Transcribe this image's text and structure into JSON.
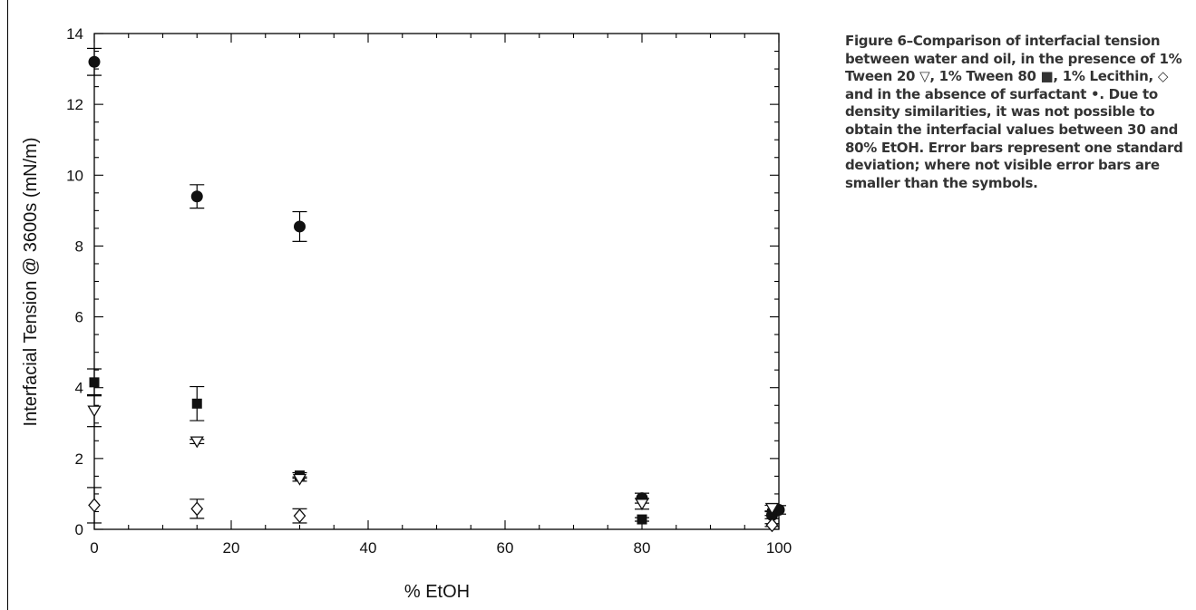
{
  "caption": "Figure 6–Comparison of interfacial tension between water and oil, in the presence of 1% Tween 20 ▽, 1% Tween 80 ■, 1% Lecithin, ◇ and in the absence of surfactant •. Due to density similarities, it was not possible to obtain the interfacial values between 30 and 80% EtOH. Error bars represent one standard deviation; where not visible error bars are smaller than the symbols.",
  "chart_data": {
    "type": "scatter",
    "title": "",
    "xlabel": "% EtOH",
    "ylabel": "Interfacial Tension @ 3600s (mN/m)",
    "xlim": [
      0,
      100
    ],
    "ylim": [
      0,
      14
    ],
    "xticks": [
      0,
      20,
      40,
      60,
      80,
      100
    ],
    "yticks": [
      0,
      2,
      4,
      6,
      8,
      10,
      12,
      14
    ],
    "grid": false,
    "series": [
      {
        "marker": "circle-filled",
        "points": [
          {
            "x": 0,
            "y": 13.2,
            "err": 0.38
          },
          {
            "x": 15,
            "y": 9.4,
            "err": 0.33
          },
          {
            "x": 30,
            "y": 8.55,
            "err": 0.42
          },
          {
            "x": 80,
            "y": 0.88,
            "err": 0.14
          },
          {
            "x": 99,
            "y": 0.4,
            "err": 0.1
          },
          {
            "x": 100,
            "y": 0.55,
            "err": 0.12
          }
        ]
      },
      {
        "marker": "square-filled",
        "points": [
          {
            "x": 0,
            "y": 4.15,
            "err": 0.38
          },
          {
            "x": 15,
            "y": 3.55,
            "err": 0.48
          },
          {
            "x": 30,
            "y": 1.52,
            "err": 0.08
          },
          {
            "x": 80,
            "y": 0.28,
            "err": 0.05
          },
          {
            "x": 99,
            "y": 0.45,
            "err": 0.06
          }
        ]
      },
      {
        "marker": "triangle-down-open",
        "points": [
          {
            "x": 0,
            "y": 3.35,
            "err": 0.45
          },
          {
            "x": 15,
            "y": 2.48,
            "err": 0.06
          },
          {
            "x": 30,
            "y": 1.42,
            "err": 0.06
          },
          {
            "x": 80,
            "y": 0.72,
            "err": 0.15
          },
          {
            "x": 99,
            "y": 0.6,
            "err": 0.08
          }
        ]
      },
      {
        "marker": "diamond-open",
        "points": [
          {
            "x": 0,
            "y": 0.68,
            "err": 0.5
          },
          {
            "x": 15,
            "y": 0.58,
            "err": 0.27
          },
          {
            "x": 30,
            "y": 0.38,
            "err": 0.2
          },
          {
            "x": 99,
            "y": 0.12,
            "err": 0.04
          }
        ]
      }
    ]
  }
}
